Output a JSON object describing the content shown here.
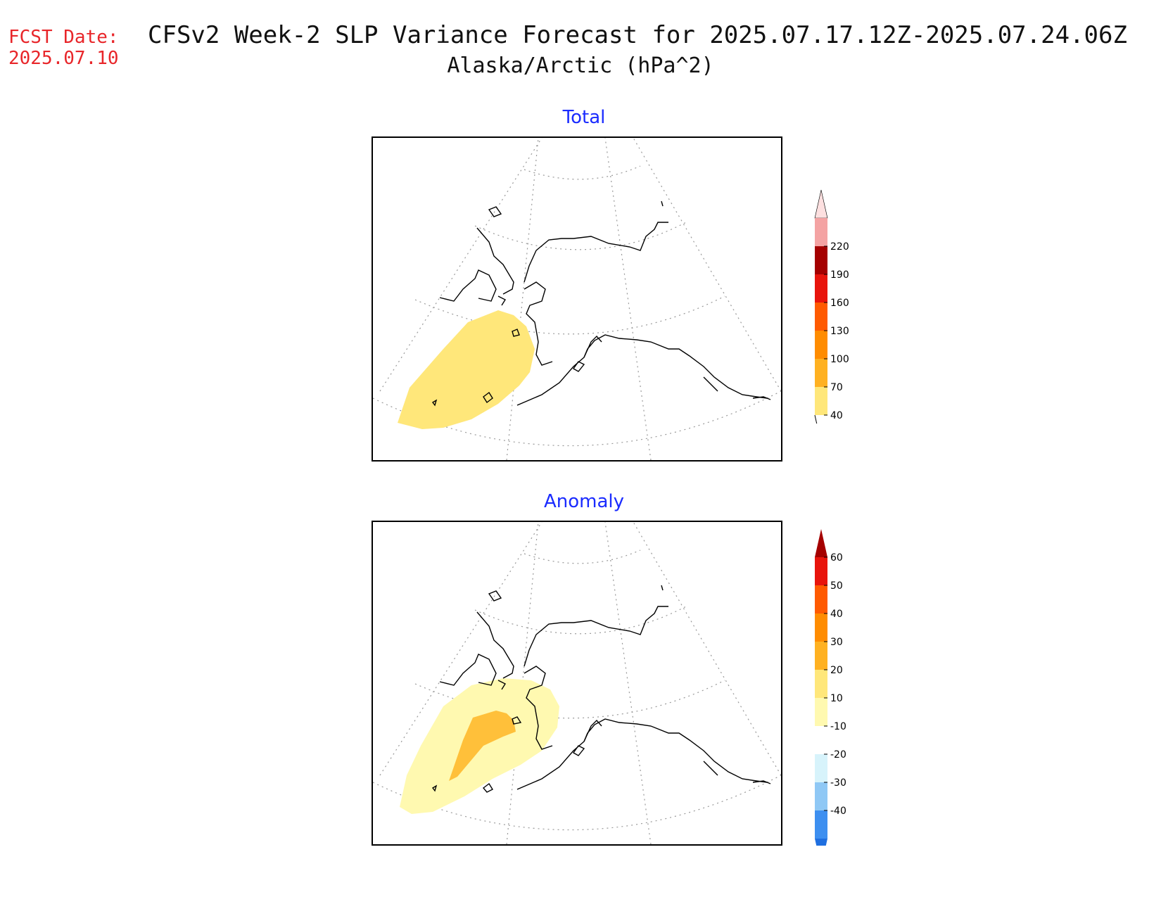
{
  "header": {
    "fcst_label": "FCST Date:",
    "fcst_date": "2025.07.10",
    "title_line1": "CFSv2 Week-2 SLP Variance Forecast for 2025.07.17.12Z-2025.07.24.06Z",
    "title_line2": "Alaska/Arctic (hPa^2)"
  },
  "panels": [
    {
      "title": "Total",
      "colorbar": {
        "labels": [
          "40",
          "70",
          "100",
          "130",
          "160",
          "190",
          "220"
        ],
        "colors": [
          "#ffe77a",
          "#ffb121",
          "#ff8c00",
          "#ff5a00",
          "#e8140c",
          "#a50000",
          "#f4a3a3",
          "#fde0e0"
        ]
      }
    },
    {
      "title": "Anomaly",
      "colorbar": {
        "labels": [
          "-40",
          "-30",
          "-20",
          "-10",
          "10",
          "20",
          "30",
          "40",
          "50",
          "60"
        ],
        "colors": [
          "#1f6fe0",
          "#3d8ff0",
          "#8fc8f5",
          "#d7f3fb",
          "#ffffff",
          "#fff9b0",
          "#ffe77a",
          "#ffb121",
          "#ff8c00",
          "#ff5a00",
          "#e8140c",
          "#a50000"
        ]
      }
    }
  ]
}
